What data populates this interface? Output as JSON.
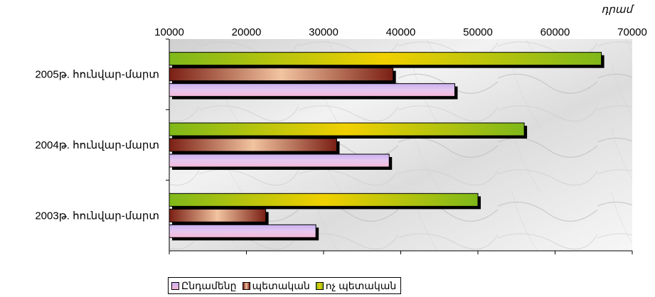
{
  "chart_data": {
    "type": "bar",
    "orientation": "horizontal",
    "unit_label": "դրամ",
    "x_ticks": [
      "10000",
      "20000",
      "30000",
      "40000",
      "50000",
      "60000",
      "70000"
    ],
    "xlim": [
      10000,
      70000
    ],
    "x_axis_position": "top",
    "categories": [
      "2003թ. հունվար-մարտ",
      "2004թ. հունվար-մարտ",
      "2005թ. հունվար-մարտ"
    ],
    "series": [
      {
        "name": "Ընդամենը",
        "values": [
          29000,
          38500,
          47000
        ],
        "color": "#d9b6e6"
      },
      {
        "name": "պետական",
        "values": [
          22500,
          31700,
          39000
        ],
        "color": "#7a2a1e"
      },
      {
        "name": "ոչ պետական",
        "values": [
          50000,
          56000,
          66000
        ],
        "color": "#9ec41a"
      }
    ],
    "legend_position": "bottom",
    "grid": false
  }
}
